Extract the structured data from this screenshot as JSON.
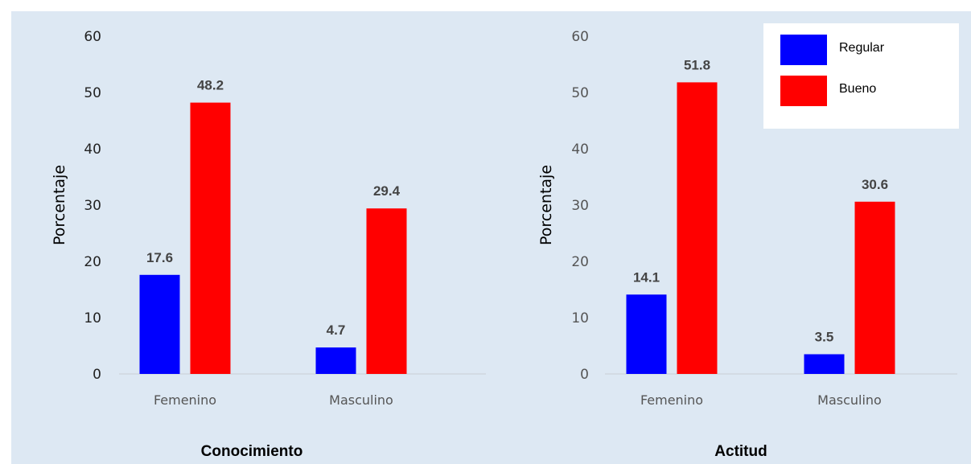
{
  "chart_data": [
    {
      "type": "bar",
      "title": "Conocimiento",
      "ylabel": "Porcentaje",
      "xlabel": "",
      "ylim": [
        0,
        60
      ],
      "yticks": [
        0,
        10,
        20,
        30,
        40,
        50,
        60
      ],
      "categories": [
        "Femenino",
        "Masculino"
      ],
      "series": [
        {
          "name": "Regular",
          "values": [
            17.6,
            4.7
          ],
          "labels": [
            "17.6",
            "4.7"
          ],
          "color": "#0000ff"
        },
        {
          "name": "Bueno",
          "values": [
            48.2,
            29.4
          ],
          "labels": [
            "48.2",
            "29.4"
          ],
          "color": "#ff0000"
        }
      ],
      "grid": false
    },
    {
      "type": "bar",
      "title": "Actitud",
      "ylabel": "Porcentaje",
      "xlabel": "",
      "ylim": [
        0,
        60
      ],
      "yticks": [
        0,
        10,
        20,
        30,
        40,
        50,
        60
      ],
      "categories": [
        "Femenino",
        "Masculino"
      ],
      "series": [
        {
          "name": "Regular",
          "values": [
            14.1,
            3.5
          ],
          "labels": [
            "14.1",
            "3.5"
          ],
          "color": "#0000ff"
        },
        {
          "name": "Bueno",
          "values": [
            51.8,
            30.6
          ],
          "labels": [
            "51.8",
            "30.6"
          ],
          "color": "#ff0000"
        }
      ],
      "grid": false,
      "legend": "top-right"
    }
  ]
}
